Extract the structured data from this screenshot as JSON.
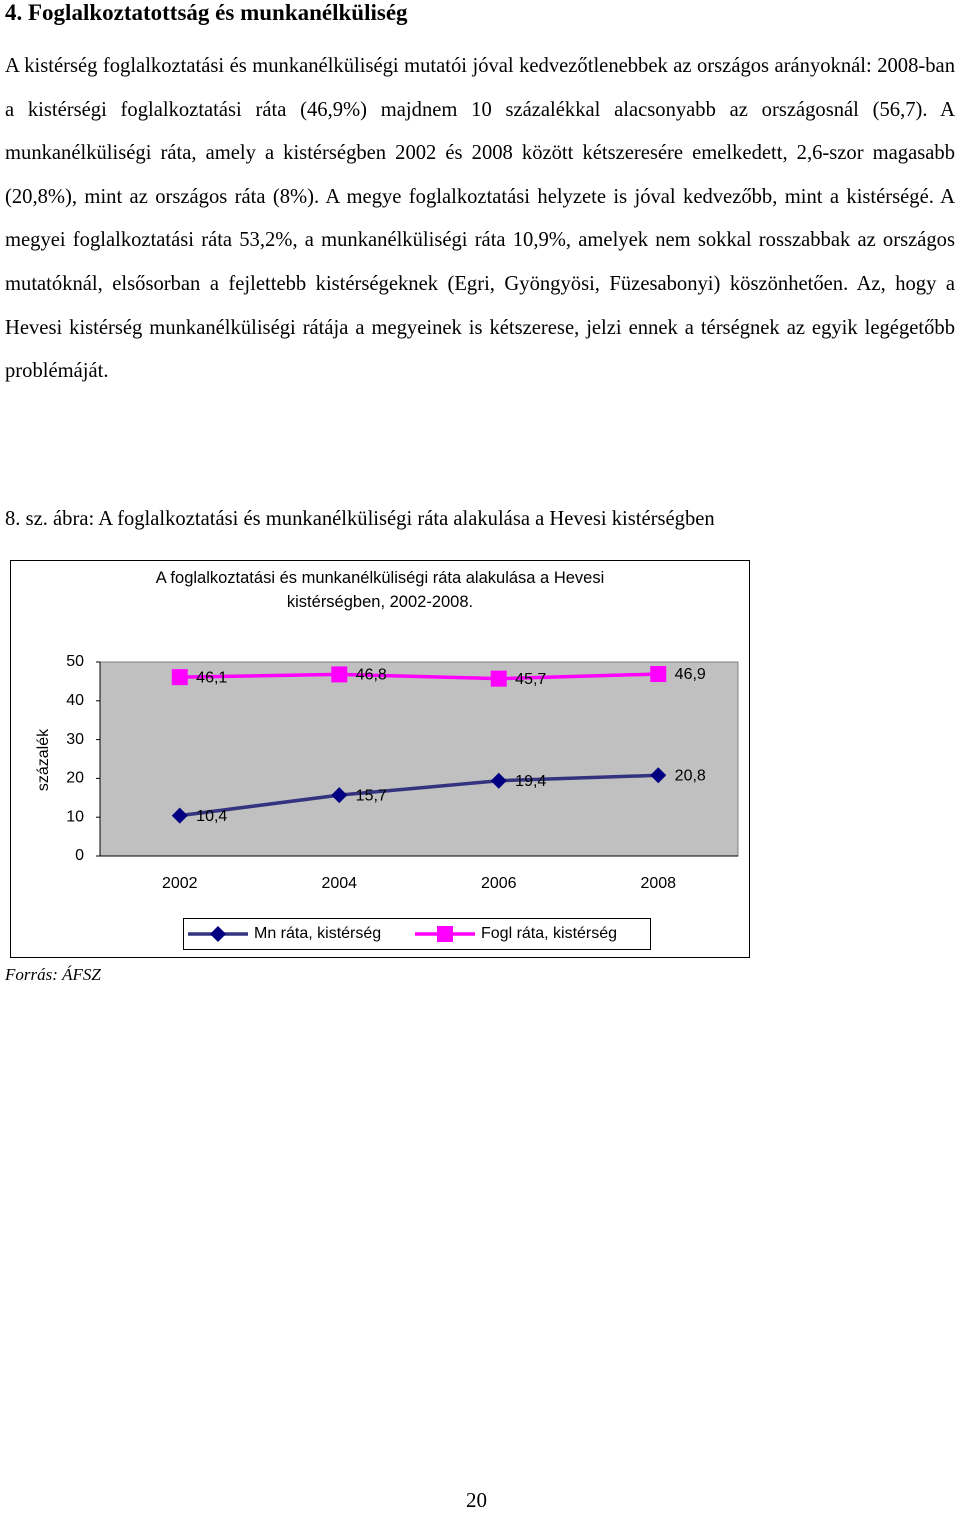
{
  "heading": "4. Foglalkoztatottság és munkanélküliség",
  "paragraph": "A kistérség foglalkoztatási és munkanélküliségi mutatói jóval kedvezőtlenebbek az országos arányoknál: 2008-ban a kistérségi foglalkoztatási ráta (46,9%) majdnem 10 százalékkal alacsonyabb az országosnál (56,7). A munkanélküliségi ráta, amely a kistérségben 2002 és 2008 között kétszeresére emelkedett, 2,6-szor magasabb (20,8%), mint az országos ráta (8%). A megye foglalkoztatási helyzete is jóval kedvezőbb, mint a kistérségé. A megyei foglalkoztatási ráta 53,2%, a munkanélküliségi ráta 10,9%, amelyek nem sokkal rosszabbak az országos mutatóknál, elsősorban a fejlettebb kistérségeknek (Egri, Gyöngyösi, Füzesabonyi) köszönhetően. Az, hogy a Hevesi kistérség munkanélküliségi rátája a megyeinek is kétszerese, jelzi ennek a térségnek az egyik legégetőbb problémáját.",
  "figure_caption": "8. sz. ábra: A foglalkoztatási és munkanélküliségi ráta alakulása a Hevesi kistérségben",
  "chart_data": {
    "type": "line",
    "title": "A foglalkoztatási és munkanélküliségi ráta alakulása a Hevesi kistérségben, 2002-2008.",
    "y_label": "százalék",
    "categories": [
      "2002",
      "2004",
      "2006",
      "2008"
    ],
    "series": [
      {
        "name": "Mn ráta, kistérség",
        "color": "#000080",
        "marker": "diamond",
        "values": [
          10.4,
          15.7,
          19.4,
          20.8
        ],
        "value_labels": [
          "10,4",
          "15,7",
          "19,4",
          "20,8"
        ]
      },
      {
        "name": "Fogl ráta, kistérség",
        "color": "#ff00ff",
        "marker": "square",
        "values": [
          46.1,
          46.8,
          45.7,
          46.9
        ],
        "value_labels": [
          "46,1",
          "46,8",
          "45,7",
          "46,9"
        ]
      }
    ],
    "ylim": [
      0,
      50
    ],
    "yticks": [
      0,
      10,
      20,
      30,
      40,
      50
    ],
    "grid": false,
    "legend": "bottom"
  },
  "source": "Forrás: ÁFSZ",
  "page_number": "20"
}
